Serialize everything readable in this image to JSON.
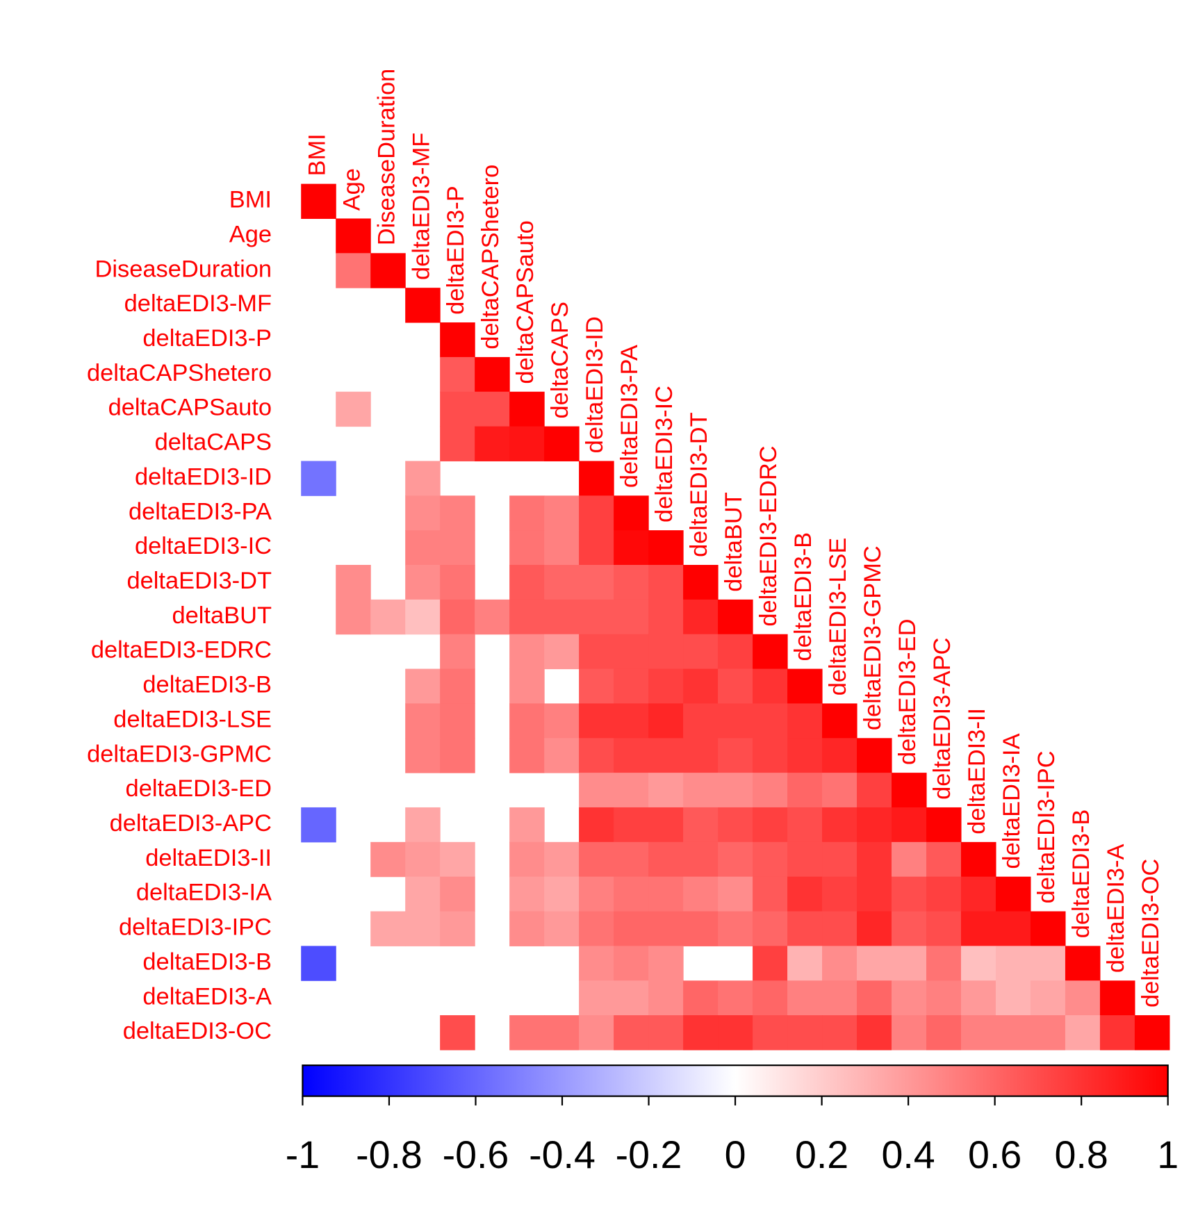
{
  "chart_data": {
    "type": "heatmap",
    "x_labels": [
      "BMI",
      "Age",
      "DiseaseDuration",
      "deltaEDI3-MF",
      "deltaEDI3-P",
      "deltaCAPShetero",
      "deltaCAPSauto",
      "deltaCAPS",
      "deltaEDI3-ID",
      "deltaEDI3-PA",
      "deltaEDI3-IC",
      "deltaEDI3-DT",
      "deltaBUT",
      "deltaEDI3-EDRC",
      "deltaEDI3-B",
      "deltaEDI3-LSE",
      "deltaEDI3-GPMC",
      "deltaEDI3-ED",
      "deltaEDI3-APC",
      "deltaEDI3-II",
      "deltaEDI3-IA",
      "deltaEDI3-IPC",
      "deltaEDI3-B",
      "deltaEDI3-A",
      "deltaEDI3-OC"
    ],
    "y_labels": [
      "BMI",
      "Age",
      "DiseaseDuration",
      "deltaEDI3-MF",
      "deltaEDI3-P",
      "deltaCAPShetero",
      "deltaCAPSauto",
      "deltaCAPS",
      "deltaEDI3-ID",
      "deltaEDI3-PA",
      "deltaEDI3-IC",
      "deltaEDI3-DT",
      "deltaBUT",
      "deltaEDI3-EDRC",
      "deltaEDI3-B",
      "deltaEDI3-LSE",
      "deltaEDI3-GPMC",
      "deltaEDI3-ED",
      "deltaEDI3-APC",
      "deltaEDI3-II",
      "deltaEDI3-IA",
      "deltaEDI3-IPC",
      "deltaEDI3-B",
      "deltaEDI3-A",
      "deltaEDI3-OC"
    ],
    "matrix": [
      [
        1
      ],
      [
        null,
        1
      ],
      [
        null,
        0.55,
        1
      ],
      [
        null,
        null,
        null,
        1
      ],
      [
        null,
        null,
        null,
        null,
        1
      ],
      [
        null,
        null,
        null,
        null,
        0.65,
        1
      ],
      [
        null,
        0.35,
        null,
        null,
        0.7,
        0.7,
        1
      ],
      [
        null,
        null,
        null,
        null,
        0.7,
        0.9,
        0.92,
        1
      ],
      [
        -0.55,
        null,
        null,
        0.4,
        null,
        null,
        null,
        null,
        1
      ],
      [
        null,
        null,
        null,
        0.45,
        0.5,
        null,
        0.55,
        0.5,
        0.75,
        1
      ],
      [
        null,
        null,
        null,
        0.5,
        0.5,
        null,
        0.55,
        0.5,
        0.75,
        0.97,
        1
      ],
      [
        null,
        0.45,
        null,
        0.45,
        0.55,
        null,
        0.65,
        0.6,
        0.6,
        0.65,
        0.7,
        1
      ],
      [
        null,
        0.45,
        0.35,
        0.25,
        0.6,
        0.5,
        0.65,
        0.65,
        0.65,
        0.65,
        0.7,
        0.85,
        1
      ],
      [
        null,
        null,
        null,
        null,
        0.5,
        null,
        0.45,
        0.4,
        0.7,
        0.7,
        0.7,
        0.7,
        0.75,
        1
      ],
      [
        null,
        null,
        null,
        0.4,
        0.55,
        null,
        0.45,
        null,
        0.65,
        0.7,
        0.75,
        0.8,
        0.7,
        0.8,
        1
      ],
      [
        null,
        null,
        null,
        0.5,
        0.55,
        null,
        0.55,
        0.5,
        0.8,
        0.8,
        0.85,
        0.75,
        0.75,
        0.75,
        0.8,
        1
      ],
      [
        null,
        null,
        null,
        0.5,
        0.55,
        null,
        0.55,
        0.45,
        0.7,
        0.75,
        0.75,
        0.75,
        0.7,
        0.75,
        0.8,
        0.85,
        1
      ],
      [
        null,
        null,
        null,
        null,
        null,
        null,
        null,
        null,
        0.45,
        0.45,
        0.4,
        0.45,
        0.45,
        0.5,
        0.6,
        0.55,
        0.75,
        1
      ],
      [
        -0.6,
        null,
        null,
        0.35,
        null,
        null,
        0.4,
        null,
        0.8,
        0.75,
        0.75,
        0.65,
        0.7,
        0.75,
        0.7,
        0.8,
        0.85,
        0.9,
        1
      ],
      [
        null,
        null,
        0.45,
        0.4,
        0.35,
        null,
        0.45,
        0.4,
        0.6,
        0.6,
        0.65,
        0.65,
        0.6,
        0.65,
        0.7,
        0.7,
        0.8,
        0.5,
        0.65,
        1
      ],
      [
        null,
        null,
        null,
        0.35,
        0.45,
        null,
        0.4,
        0.35,
        0.5,
        0.55,
        0.55,
        0.5,
        0.45,
        0.65,
        0.8,
        0.75,
        0.8,
        0.7,
        0.75,
        0.85,
        1
      ],
      [
        null,
        null,
        0.35,
        0.35,
        0.4,
        null,
        0.45,
        0.4,
        0.55,
        0.6,
        0.6,
        0.6,
        0.55,
        0.6,
        0.7,
        0.7,
        0.85,
        0.65,
        0.7,
        0.9,
        0.9,
        1
      ],
      [
        -0.7,
        null,
        null,
        null,
        null,
        null,
        null,
        null,
        0.45,
        0.5,
        0.45,
        null,
        null,
        0.75,
        0.3,
        0.45,
        0.35,
        0.35,
        0.55,
        0.25,
        0.3,
        0.3,
        1
      ],
      [
        null,
        null,
        null,
        null,
        null,
        null,
        null,
        null,
        0.4,
        0.4,
        0.45,
        0.6,
        0.55,
        0.6,
        0.5,
        0.5,
        0.6,
        0.45,
        0.5,
        0.4,
        0.3,
        0.35,
        0.45,
        1
      ],
      [
        null,
        null,
        null,
        null,
        0.7,
        null,
        0.55,
        0.55,
        0.45,
        0.65,
        0.65,
        0.8,
        0.8,
        0.7,
        0.7,
        0.7,
        0.8,
        0.5,
        0.6,
        0.5,
        0.5,
        0.5,
        0.35,
        0.8,
        1
      ]
    ],
    "label_color": "#ff0000",
    "colorbar": {
      "lim": [
        -1,
        1
      ],
      "ticks": [
        -1,
        -0.8,
        -0.6,
        -0.4,
        -0.2,
        0,
        0.2,
        0.4,
        0.6,
        0.8,
        1
      ],
      "colors": [
        "#0000ff",
        "#ffffff",
        "#ff0000"
      ]
    }
  }
}
